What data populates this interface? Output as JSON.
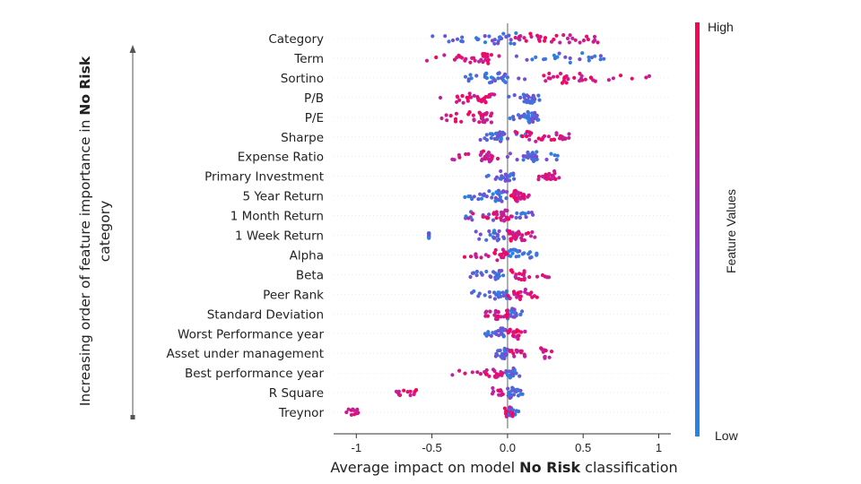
{
  "chart_data": {
    "type": "scatter",
    "subtype": "beeswarm",
    "xlabel_prefix": "Average impact on model ",
    "xlabel_bold": "No Risk",
    "xlabel_suffix": " classification",
    "xlim": [
      -1.15,
      1.08
    ],
    "xticks": [
      -1,
      -0.5,
      0,
      0.5,
      1
    ],
    "xtick_labels": [
      "-1",
      "-0.5",
      "0.0",
      "0.5",
      "1"
    ],
    "side_title_prefix": "Increasing order of feature importance in ",
    "side_title_bold": "No Risk",
    "side_title_line2": "category",
    "colorbar": {
      "title": "Feature Values",
      "high": "High",
      "low": "Low",
      "high_color": "#ff0052",
      "low_color": "#1e88e5"
    },
    "features": [
      {
        "name": "Category",
        "low": [
          [
            -0.52,
            -0.02
          ],
          [
            -0.35,
            0.12
          ],
          [
            -0.1,
            0.05
          ]
        ],
        "high": [
          [
            0.02,
            0.3
          ],
          [
            0.35,
            0.6
          ],
          [
            0.15,
            0.45
          ]
        ]
      },
      {
        "name": "Term",
        "low": [
          [
            0.05,
            0.75
          ],
          [
            0.25,
            0.7
          ]
        ],
        "high": [
          [
            -0.55,
            -0.05
          ],
          [
            -0.25,
            -0.1
          ],
          [
            -0.18,
            -0.12
          ]
        ]
      },
      {
        "name": "Sortino",
        "low": [
          [
            -0.28,
            0.15
          ],
          [
            -0.15,
            -0.05
          ],
          [
            -0.1,
            0.0
          ]
        ],
        "high": [
          [
            0.3,
            1.0
          ],
          [
            0.35,
            0.6
          ],
          [
            0.2,
            0.4
          ]
        ]
      },
      {
        "name": "P/B",
        "low": [
          [
            0.0,
            0.22
          ],
          [
            0.1,
            0.2
          ],
          [
            0.12,
            0.18
          ]
        ],
        "high": [
          [
            -0.5,
            -0.05
          ],
          [
            -0.35,
            -0.15
          ],
          [
            -0.2,
            -0.1
          ]
        ]
      },
      {
        "name": "P/E",
        "low": [
          [
            0.0,
            0.22
          ],
          [
            0.1,
            0.2
          ],
          [
            0.12,
            0.18
          ]
        ],
        "high": [
          [
            -0.45,
            -0.05
          ],
          [
            -0.35,
            -0.15
          ],
          [
            -0.2,
            -0.1
          ]
        ]
      },
      {
        "name": "Sharpe",
        "low": [
          [
            -0.22,
            0.15
          ],
          [
            -0.12,
            -0.02
          ],
          [
            -0.08,
            -0.04
          ]
        ],
        "high": [
          [
            0.2,
            0.45
          ],
          [
            0.3,
            0.42
          ],
          [
            0.05,
            0.2
          ]
        ]
      },
      {
        "name": "Expense Ratio",
        "low": [
          [
            0.0,
            0.35
          ],
          [
            0.1,
            0.2
          ],
          [
            0.15,
            0.2
          ]
        ],
        "high": [
          [
            -0.4,
            -0.05
          ],
          [
            -0.2,
            -0.1
          ],
          [
            -0.15,
            -0.1
          ]
        ]
      },
      {
        "name": "Primary Investment",
        "low": [
          [
            -0.15,
            0.05
          ],
          [
            -0.05,
            0.02
          ]
        ],
        "high": [
          [
            0.2,
            0.35
          ],
          [
            0.25,
            0.32
          ]
        ]
      },
      {
        "name": "5 Year Return",
        "low": [
          [
            -0.32,
            0.0
          ],
          [
            -0.15,
            -0.02
          ],
          [
            -0.08,
            0.0
          ]
        ],
        "high": [
          [
            0.0,
            0.18
          ],
          [
            0.02,
            0.12
          ],
          [
            0.04,
            0.08
          ]
        ]
      },
      {
        "name": "1 Month Return",
        "low": [
          [
            0.0,
            0.18
          ],
          [
            -0.3,
            0.0
          ]
        ],
        "high": [
          [
            -0.3,
            0.05
          ],
          [
            -0.1,
            0.02
          ],
          [
            -0.05,
            0.0
          ]
        ]
      },
      {
        "name": "1 Week Return",
        "low": [
          [
            -0.52,
            -0.52
          ],
          [
            -0.25,
            0.0
          ],
          [
            -0.12,
            -0.02
          ]
        ],
        "high": [
          [
            0.0,
            0.2
          ],
          [
            0.0,
            0.12
          ],
          [
            0.02,
            0.08
          ]
        ]
      },
      {
        "name": "Alpha",
        "low": [
          [
            0.0,
            0.2
          ],
          [
            0.0,
            0.08
          ]
        ],
        "high": [
          [
            -0.32,
            0.0
          ],
          [
            -0.1,
            0.0
          ]
        ]
      },
      {
        "name": "Beta",
        "low": [
          [
            -0.25,
            0.0
          ],
          [
            -0.1,
            0.0
          ]
        ],
        "high": [
          [
            0.0,
            0.28
          ],
          [
            0.0,
            0.12
          ]
        ]
      },
      {
        "name": "Peer Rank",
        "low": [
          [
            -0.25,
            0.0
          ],
          [
            -0.1,
            0.0
          ]
        ],
        "high": [
          [
            0.0,
            0.2
          ],
          [
            0.0,
            0.12
          ]
        ]
      },
      {
        "name": "Standard Deviation",
        "low": [
          [
            0.0,
            0.1
          ],
          [
            0.0,
            0.05
          ]
        ],
        "high": [
          [
            -0.15,
            0.0
          ],
          [
            -0.08,
            0.0
          ]
        ]
      },
      {
        "name": "Worst Performance year",
        "low": [
          [
            -0.15,
            0.0
          ],
          [
            -0.05,
            0.0
          ]
        ],
        "high": [
          [
            0.0,
            0.12
          ],
          [
            0.0,
            0.08
          ]
        ]
      },
      {
        "name": "Asset under management",
        "low": [
          [
            -0.08,
            0.02
          ],
          [
            -0.04,
            0.0
          ]
        ],
        "high": [
          [
            0.0,
            0.12
          ],
          [
            0.22,
            0.3
          ]
        ]
      },
      {
        "name": "Best performance year",
        "low": [
          [
            -0.02,
            0.1
          ],
          [
            0.0,
            0.05
          ]
        ],
        "high": [
          [
            -0.4,
            -0.02
          ],
          [
            -0.15,
            -0.03
          ]
        ]
      },
      {
        "name": "R Square",
        "low": [
          [
            0.0,
            0.1
          ],
          [
            0.0,
            0.05
          ]
        ],
        "high": [
          [
            -0.75,
            -0.55
          ],
          [
            -0.1,
            0.02
          ]
        ]
      },
      {
        "name": "Treynor",
        "low": [
          [
            0.0,
            0.08
          ],
          [
            0.0,
            0.04
          ]
        ],
        "high": [
          [
            -1.07,
            -0.98
          ],
          [
            -0.02,
            0.04
          ]
        ]
      }
    ]
  }
}
